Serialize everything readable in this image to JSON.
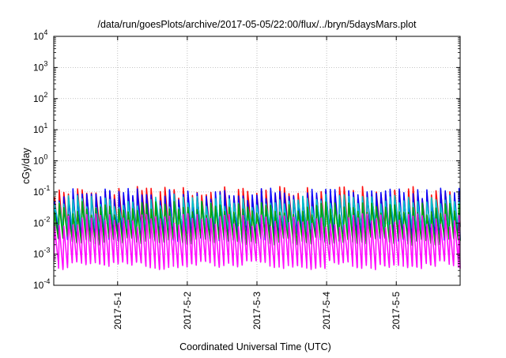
{
  "chart_data": {
    "type": "line",
    "title": "/data/run/goesPlots/archive/2017-05-05/22:00/flux/../bryn/5daysMars.plot",
    "xlabel": "Coordinated Universal Time (UTC)",
    "ylabel": "cGy/day",
    "yscale": "log",
    "ylim": [
      0.0001,
      10000
    ],
    "y_ticks": [
      {
        "value": 0.0001,
        "base": "10",
        "exp": "-4"
      },
      {
        "value": 0.001,
        "base": "10",
        "exp": "-3"
      },
      {
        "value": 0.01,
        "base": "10",
        "exp": "-2"
      },
      {
        "value": 0.1,
        "base": "10",
        "exp": "-1"
      },
      {
        "value": 1,
        "base": "10",
        "exp": "0"
      },
      {
        "value": 10,
        "base": "10",
        "exp": "1"
      },
      {
        "value": 100,
        "base": "10",
        "exp": "2"
      },
      {
        "value": 1000,
        "base": "10",
        "exp": "3"
      },
      {
        "value": 10000,
        "base": "10",
        "exp": "4"
      }
    ],
    "xlim": [
      "2017-04-30T02:00",
      "2017-05-05T22:00"
    ],
    "x_ticks": [
      {
        "value": "2017-05-01T00:00",
        "label": "2017-5-1"
      },
      {
        "value": "2017-05-02T00:00",
        "label": "2017-5-2"
      },
      {
        "value": "2017-05-03T00:00",
        "label": "2017-5-3"
      },
      {
        "value": "2017-05-04T00:00",
        "label": "2017-5-4"
      },
      {
        "value": "2017-05-05T00:00",
        "label": "2017-5-5"
      }
    ],
    "grid": true,
    "pattern": "sawtooth spikes roughly every 90 minutes across all series",
    "series": [
      {
        "color": "#ff0000",
        "peak": 0.09,
        "trough": 0.006
      },
      {
        "color": "#0000ff",
        "peak": 0.08,
        "trough": 0.004
      },
      {
        "color": "#00c8c8",
        "peak": 0.05,
        "trough": 0.008
      },
      {
        "color": "#00a000",
        "peak": 0.03,
        "trough": 0.003
      },
      {
        "color": "#ff00ff",
        "peak": 0.012,
        "trough": 0.0005
      }
    ]
  }
}
